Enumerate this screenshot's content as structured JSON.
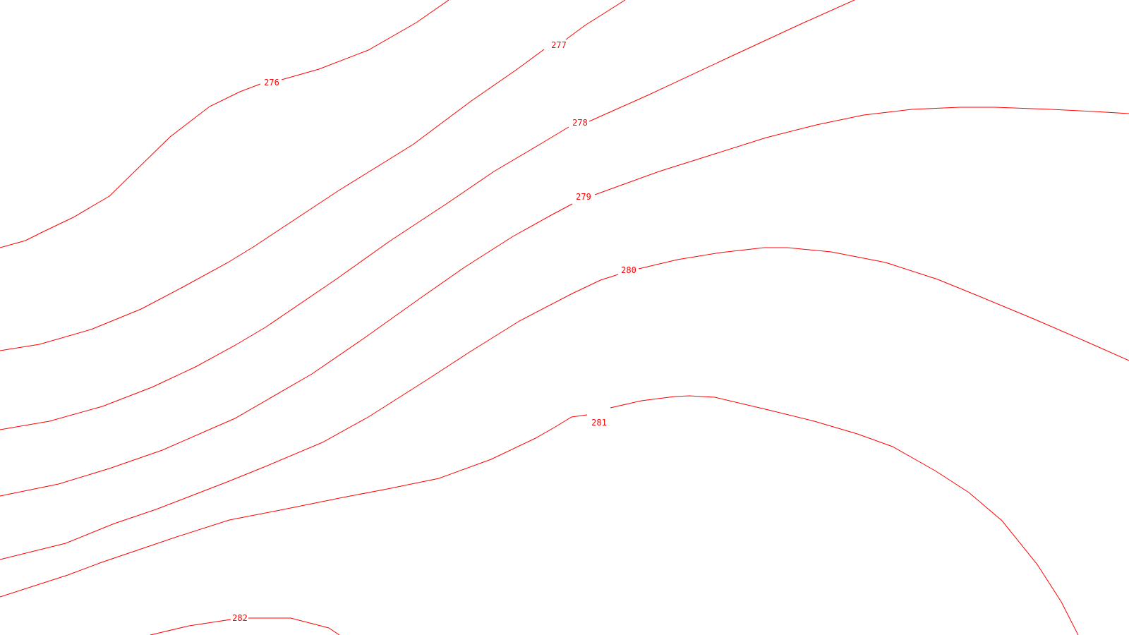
{
  "map": {
    "background_color": "#ffffff",
    "contour_color": "#ff0000",
    "contours": [
      {
        "label": "276"
      },
      {
        "label": "277"
      },
      {
        "label": "278"
      },
      {
        "label": "279"
      },
      {
        "label": "280"
      },
      {
        "label": "281"
      },
      {
        "label": "282"
      }
    ]
  }
}
